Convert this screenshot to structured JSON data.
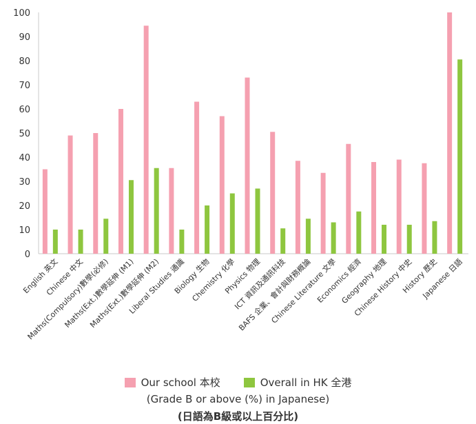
{
  "chart_data": {
    "type": "bar",
    "categories": [
      "English 英文",
      "Chinese 中文",
      "Maths(Compulsory)數學(必修)",
      "Maths(Ext.)數學延伸 (M1)",
      "Maths(Ext.)數學延伸 (M2)",
      "Liberal Studies 通識",
      "Biology 生物",
      "Chemistry 化學",
      "Physics 物理",
      "ICT 資訊及通訊科技",
      "BAFS 企業、會計與財務概論",
      "Chinese Literature 文學",
      "Economics 經濟",
      "Geography 地理",
      "Chinese History 中史",
      "History 歷史",
      "Japanese 日語"
    ],
    "series": [
      {
        "name": "Our school 本校",
        "color": "#f5a0b0",
        "values": [
          35,
          49,
          50,
          60,
          94.5,
          35.5,
          63,
          57,
          73,
          50.5,
          38.5,
          33.5,
          45.5,
          38,
          39,
          37.5,
          100
        ]
      },
      {
        "name": "Overall in HK 全港",
        "color": "#8ec63f",
        "values": [
          10,
          10,
          14.5,
          30.5,
          35.5,
          10,
          20,
          25,
          27,
          10.5,
          14.5,
          13,
          17.5,
          12,
          12,
          13.5,
          80.5
        ]
      }
    ],
    "ylim": [
      0,
      100
    ],
    "yticks": [
      "0",
      "10",
      "20",
      "30",
      "40",
      "50",
      "60",
      "70",
      "80",
      "90",
      "100"
    ],
    "grid": false,
    "legend_position": "bottom-center"
  },
  "legend": {
    "our_school": "Our school 本校",
    "overall_hk": "Overall in HK 全港"
  },
  "caption": {
    "line1": "(Grade B or above (%) in Japanese)",
    "line2": "(日語為B級或以上百分比)"
  }
}
